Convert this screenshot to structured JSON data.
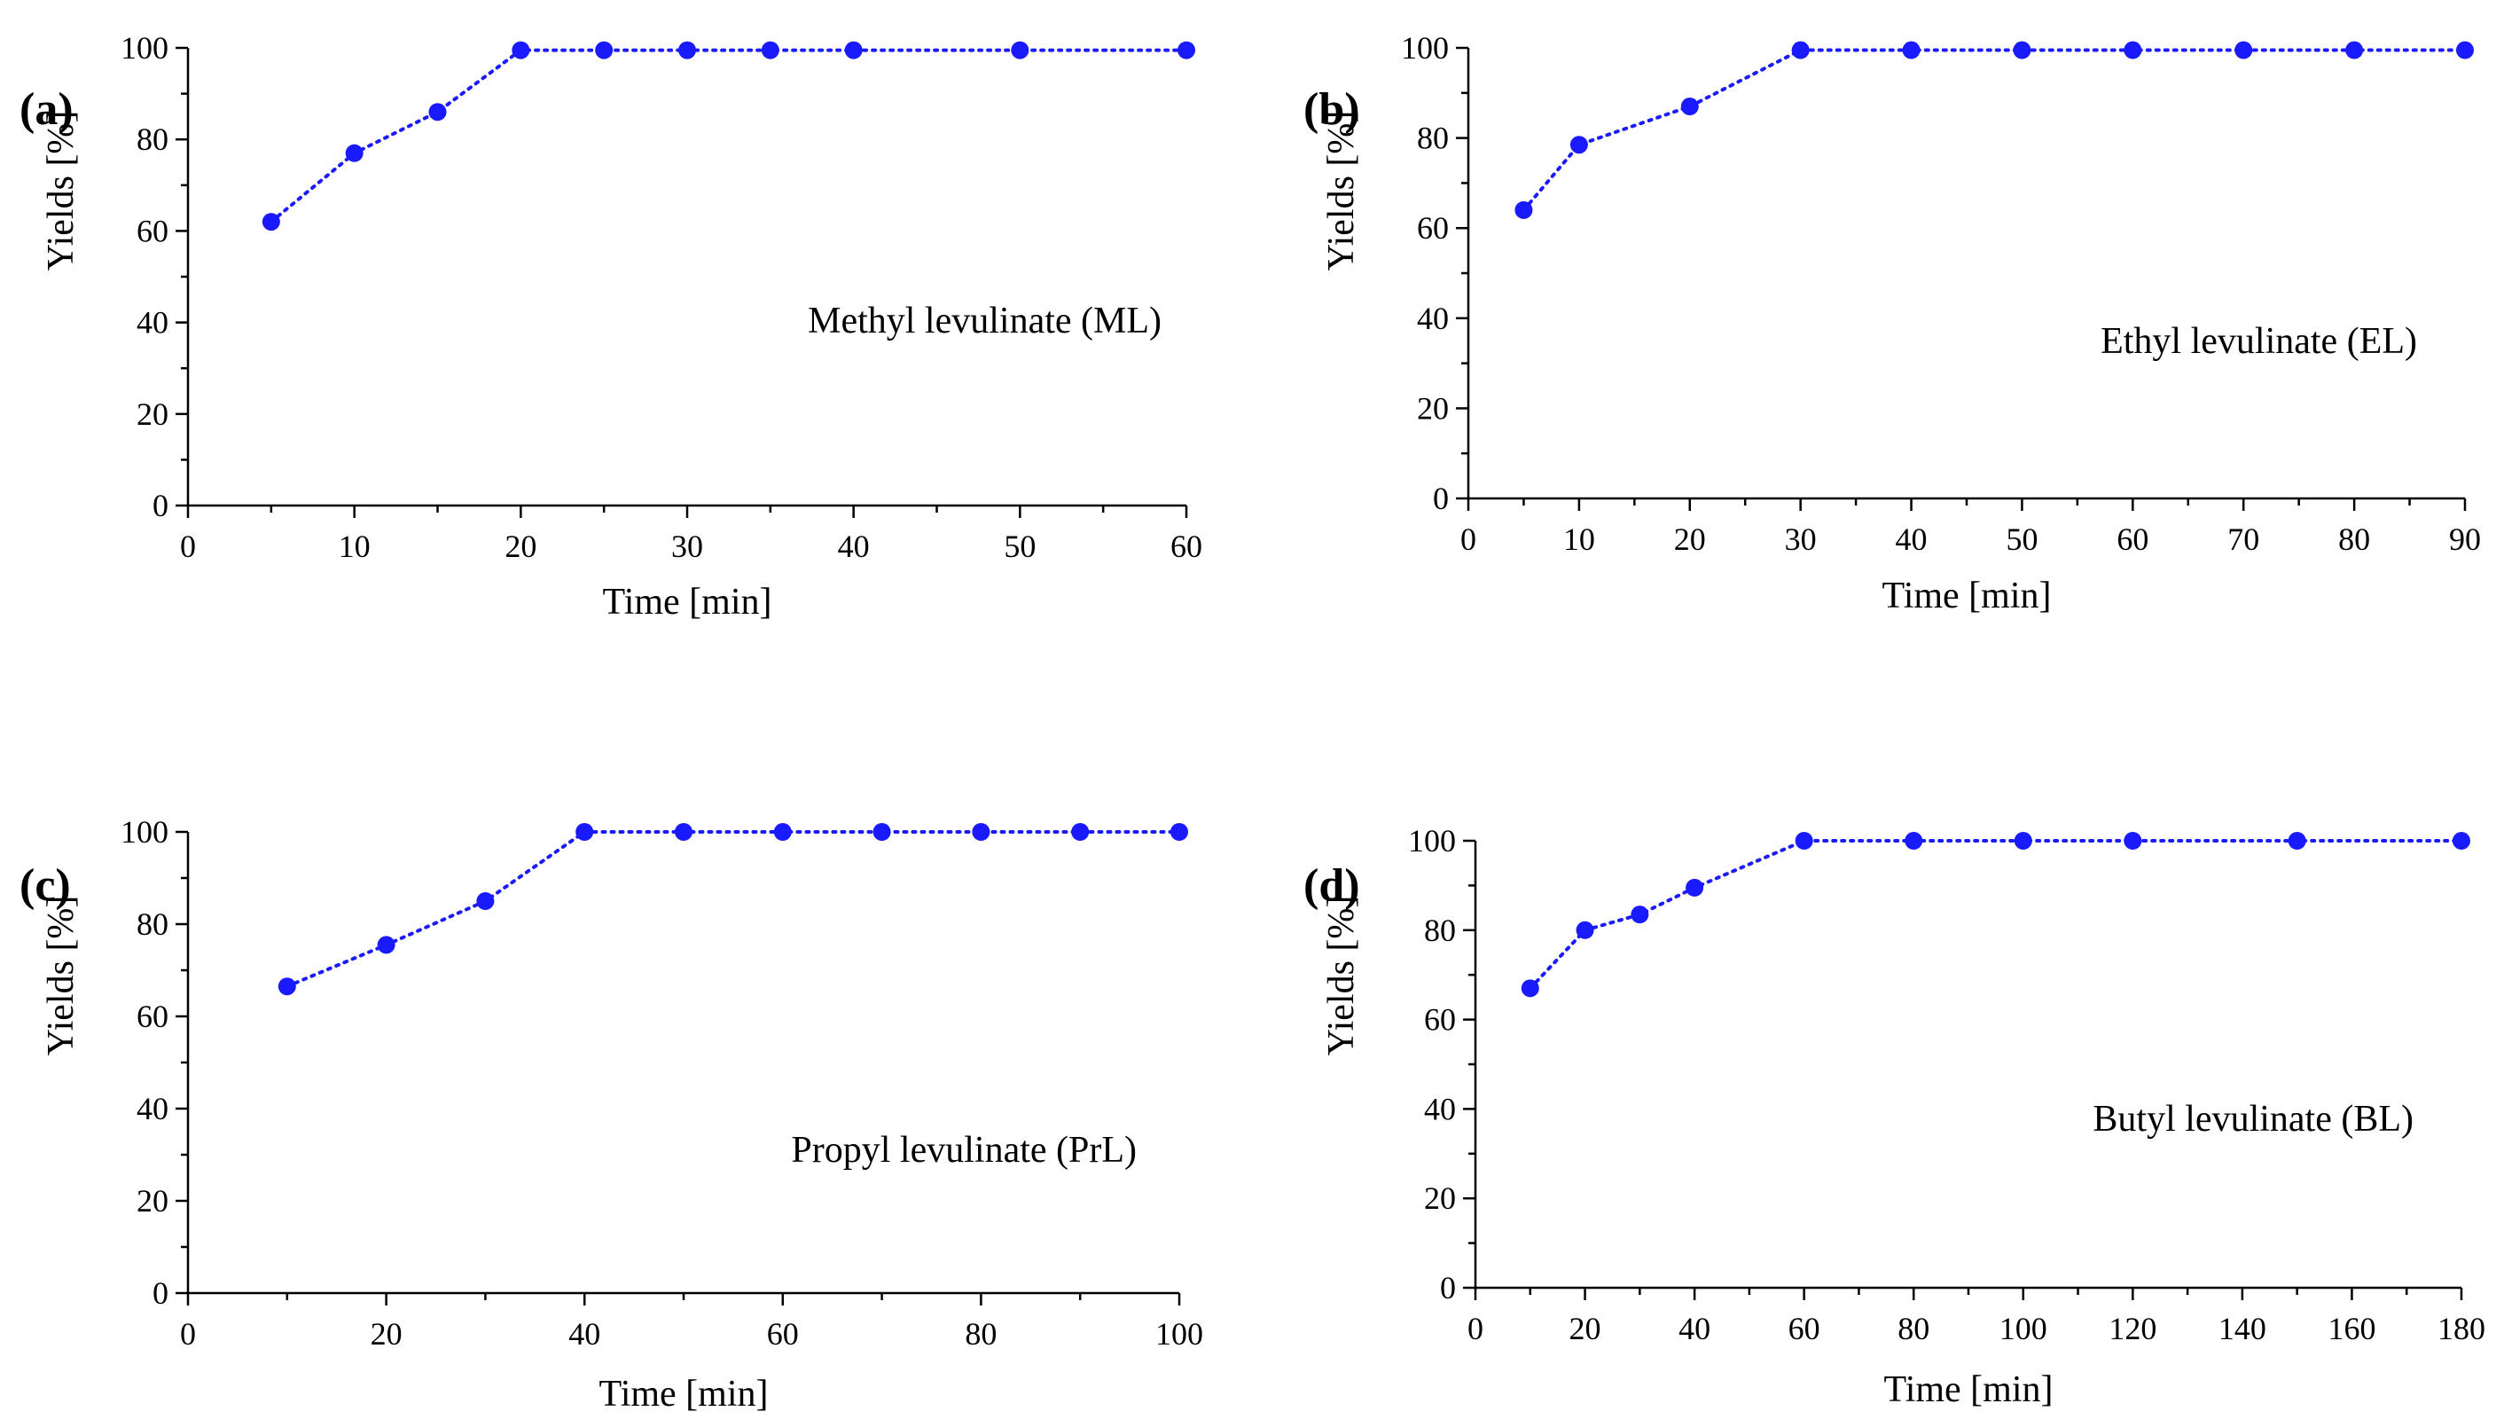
{
  "style": {
    "series_color": "#1a1aff",
    "axis_color": "#000000"
  },
  "chart_data": [
    {
      "type": "line",
      "panel_label": "(a)",
      "annotation": "Methyl levulinate (ML)",
      "xlabel": "Time [min]",
      "ylabel": "Yields [%]",
      "xlim": [
        0,
        60
      ],
      "ylim": [
        0,
        100
      ],
      "xticks": [
        0,
        10,
        20,
        30,
        40,
        50,
        60
      ],
      "yticks": [
        0,
        20,
        40,
        60,
        80,
        100
      ],
      "series": [
        {
          "name": "ML",
          "x": [
            5,
            10,
            15,
            20,
            25,
            30,
            35,
            40,
            50,
            60
          ],
          "y": [
            62,
            77,
            86,
            99.5,
            99.5,
            99.5,
            99.5,
            99.5,
            99.5,
            99.5
          ]
        }
      ]
    },
    {
      "type": "line",
      "panel_label": "(b)",
      "annotation": "Ethyl levulinate (EL)",
      "xlabel": "Time [min]",
      "ylabel": "Yields [%]",
      "xlim": [
        0,
        90
      ],
      "ylim": [
        0,
        100
      ],
      "xticks": [
        0,
        10,
        20,
        30,
        40,
        50,
        60,
        70,
        80,
        90
      ],
      "yticks": [
        0,
        20,
        40,
        60,
        80,
        100
      ],
      "series": [
        {
          "name": "EL",
          "x": [
            5,
            10,
            20,
            30,
            40,
            50,
            60,
            70,
            80,
            90
          ],
          "y": [
            64,
            78.5,
            87,
            99.5,
            99.5,
            99.5,
            99.5,
            99.5,
            99.5,
            99.5
          ]
        }
      ]
    },
    {
      "type": "line",
      "panel_label": "(c)",
      "annotation": "Propyl levulinate (PrL)",
      "xlabel": "Time [min]",
      "ylabel": "Yields [%]",
      "xlim": [
        0,
        100
      ],
      "ylim": [
        0,
        100
      ],
      "xticks": [
        0,
        20,
        40,
        60,
        80,
        100
      ],
      "yticks": [
        0,
        20,
        40,
        60,
        80,
        100
      ],
      "series": [
        {
          "name": "PrL",
          "x": [
            10,
            20,
            30,
            40,
            50,
            60,
            70,
            80,
            90,
            100
          ],
          "y": [
            66.5,
            75.5,
            85,
            100,
            100,
            100,
            100,
            100,
            100,
            100
          ]
        }
      ]
    },
    {
      "type": "line",
      "panel_label": "(d)",
      "annotation": "Butyl levulinate (BL)",
      "xlabel": "Time [min]",
      "ylabel": "Yields [%]",
      "xlim": [
        0,
        180
      ],
      "ylim": [
        0,
        100
      ],
      "xticks": [
        0,
        20,
        40,
        60,
        80,
        100,
        120,
        140,
        160,
        180
      ],
      "yticks": [
        0,
        20,
        40,
        60,
        80,
        100
      ],
      "series": [
        {
          "name": "BL",
          "x": [
            10,
            20,
            30,
            40,
            60,
            80,
            100,
            120,
            150,
            180
          ],
          "y": [
            67,
            80,
            83.5,
            89.5,
            100,
            100,
            100,
            100,
            100,
            100
          ]
        }
      ]
    }
  ]
}
